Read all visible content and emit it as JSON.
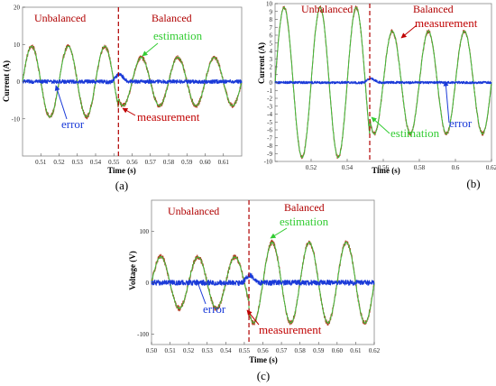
{
  "figure": {
    "panel_labels": [
      "(a)",
      "(b)",
      "(c)"
    ]
  },
  "colors": {
    "measurement": "#b03a1e",
    "estimation": "#3fbf3f",
    "error": "#1a3ad8",
    "switch_line": "#b00000",
    "region_text": "#c00000",
    "annotation_measurement": "#c00000",
    "annotation_estimation": "#33cc33",
    "annotation_error": "#1a3ad8"
  },
  "chart_data": [
    {
      "id": "a",
      "type": "line",
      "panel_label": "(a)",
      "xlabel": "Time (s)",
      "ylabel": "Current (A)",
      "xlim": [
        0.5,
        0.62
      ],
      "ylim": [
        -20,
        20
      ],
      "xticks": [
        0.51,
        0.52,
        0.53,
        0.54,
        0.55,
        0.56,
        0.57,
        0.58,
        0.59,
        0.6,
        0.61
      ],
      "xtick_labels": [
        "0.51",
        "0.52",
        "0.53",
        "0.54",
        "0.55",
        "0.56",
        "0.57",
        "0.58",
        "0.59",
        "0.60",
        "0.61"
      ],
      "yticks": [
        -10,
        0,
        10,
        20
      ],
      "ytick_labels": [
        "-10",
        "0",
        "10",
        "20"
      ],
      "grid": false,
      "legend": "none",
      "switch_time": 0.5525,
      "regions": [
        "Unbalanced",
        "Balanced"
      ],
      "annotations": [
        "estimation",
        "measurement",
        "error"
      ],
      "series": [
        {
          "name": "measurement",
          "frequency_hz": 50,
          "phase_deg": 0,
          "amplitude_before": 9.5,
          "amplitude_after": 6.5,
          "noise": 0.6
        },
        {
          "name": "estimation",
          "frequency_hz": 50,
          "phase_deg": 0,
          "amplitude_before": 9.5,
          "amplitude_after": 6.5,
          "noise": 0.1
        },
        {
          "name": "error",
          "baseline": 0,
          "noise": 0.5,
          "transient_peak": 2.0
        }
      ]
    },
    {
      "id": "b",
      "type": "line",
      "panel_label": "(b)",
      "xlabel": "Time (s)",
      "ylabel": "Current (A)",
      "xlim": [
        0.5,
        0.62
      ],
      "ylim": [
        -10,
        10
      ],
      "xticks": [
        0.52,
        0.54,
        0.56,
        0.58,
        0.6,
        0.62
      ],
      "xtick_labels": [
        "0.52",
        "0.54",
        "0.56",
        "0.58",
        "0.6",
        "0.62"
      ],
      "yticks": [
        -10,
        -9,
        -8,
        -7,
        -6,
        -5,
        -4,
        -3,
        -2,
        -1,
        0,
        1,
        2,
        3,
        4,
        5,
        6,
        7,
        8,
        9,
        10
      ],
      "ytick_labels": [
        "-10",
        "-9",
        "-8",
        "-7",
        "-6",
        "-5",
        "-4",
        "-3",
        "-2",
        "-1",
        "0",
        "1",
        "2",
        "3",
        "4",
        "5",
        "6",
        "7",
        "8",
        "9",
        "10"
      ],
      "grid": false,
      "legend": "none",
      "switch_time": 0.5525,
      "regions": [
        "Unbalanced",
        "Balanced"
      ],
      "annotations": [
        "measurement",
        "estimation",
        "error"
      ],
      "series": [
        {
          "name": "measurement",
          "frequency_hz": 50,
          "phase_deg": 0,
          "amplitude_before": 9.5,
          "amplitude_after": 6.5,
          "noise": 0.25
        },
        {
          "name": "estimation",
          "frequency_hz": 50,
          "phase_deg": 0,
          "amplitude_before": 9.5,
          "amplitude_after": 6.5,
          "noise": 0.05
        },
        {
          "name": "error",
          "baseline": 0,
          "noise": 0.15,
          "transient_peak": 0.5
        }
      ]
    },
    {
      "id": "c",
      "type": "line",
      "panel_label": "(c)",
      "xlabel": "Time (s)",
      "ylabel": "Voltage (V)",
      "xlim": [
        0.5,
        0.62
      ],
      "ylim": [
        -120,
        160
      ],
      "xticks": [
        0.5,
        0.51,
        0.52,
        0.53,
        0.54,
        0.55,
        0.56,
        0.57,
        0.58,
        0.59,
        0.6,
        0.61,
        0.62
      ],
      "xtick_labels": [
        "0.50",
        "0.51",
        "0.52",
        "0.53",
        "0.54",
        "0.55",
        "0.56",
        "0.57",
        "0.58",
        "0.59",
        "0.60",
        "0.61",
        "0.62"
      ],
      "yticks": [
        -100,
        0,
        100
      ],
      "ytick_labels": [
        "-100",
        "0",
        "100"
      ],
      "grid": false,
      "legend": "none",
      "switch_time": 0.5525,
      "regions": [
        "Unbalanced",
        "Balanced"
      ],
      "annotations": [
        "estimation",
        "error",
        "measurement"
      ],
      "series": [
        {
          "name": "measurement",
          "frequency_hz": 50,
          "phase_deg": 0,
          "amplitude_before": 50,
          "amplitude_after": 78,
          "noise": 5
        },
        {
          "name": "estimation",
          "frequency_hz": 50,
          "phase_deg": 0,
          "amplitude_before": 50,
          "amplitude_after": 78,
          "noise": 1
        },
        {
          "name": "error",
          "baseline": 0,
          "noise": 5,
          "transient_peak": 15
        }
      ]
    }
  ]
}
